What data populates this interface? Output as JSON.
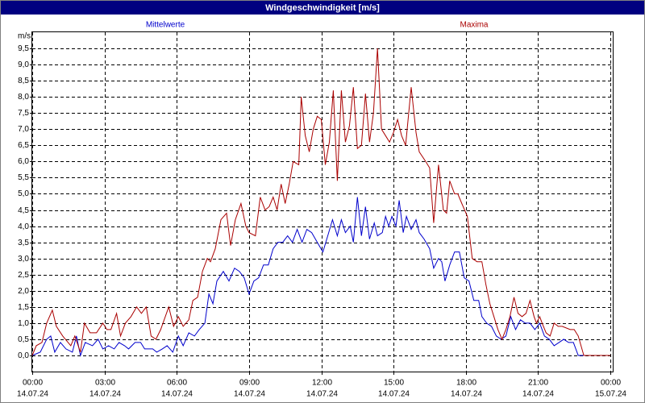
{
  "chart_data": {
    "type": "line",
    "title": "Windgeschwindigkeit [m/s]",
    "y_unit": "m/s",
    "grid": true,
    "xlim": [
      0,
      1440
    ],
    "xticks": [
      {
        "value": 0,
        "label": "00:00"
      },
      {
        "value": 180,
        "label": "03:00"
      },
      {
        "value": 360,
        "label": "06:00"
      },
      {
        "value": 540,
        "label": "09:00"
      },
      {
        "value": 720,
        "label": "12:00"
      },
      {
        "value": 900,
        "label": "15:00"
      },
      {
        "value": 1080,
        "label": "18:00"
      },
      {
        "value": 1260,
        "label": "21:00"
      },
      {
        "value": 1440,
        "label": "00:00"
      }
    ],
    "xtick_dates": [
      "14.07.24",
      "14.07.24",
      "14.07.24",
      "14.07.24",
      "14.07.24",
      "14.07.24",
      "14.07.24",
      "14.07.24",
      "15.07.24"
    ],
    "ylim": [
      -0.5,
      10
    ],
    "yticks": [
      {
        "value": 0,
        "label": "0,0"
      },
      {
        "value": 0.5,
        "label": "0,5"
      },
      {
        "value": 1,
        "label": "1,0"
      },
      {
        "value": 1.5,
        "label": "1,5"
      },
      {
        "value": 2,
        "label": "2,0"
      },
      {
        "value": 2.5,
        "label": "2,5"
      },
      {
        "value": 3,
        "label": "3,0"
      },
      {
        "value": 3.5,
        "label": "3,5"
      },
      {
        "value": 4,
        "label": "4,0"
      },
      {
        "value": 4.5,
        "label": "4,5"
      },
      {
        "value": 5,
        "label": "5,0"
      },
      {
        "value": 5.5,
        "label": "5,5"
      },
      {
        "value": 6,
        "label": "6,0"
      },
      {
        "value": 6.5,
        "label": "6,5"
      },
      {
        "value": 7,
        "label": "7,0"
      },
      {
        "value": 7.5,
        "label": "7,5"
      },
      {
        "value": 8,
        "label": "8,0"
      },
      {
        "value": 8.5,
        "label": "8,5"
      },
      {
        "value": 9,
        "label": "9,0"
      },
      {
        "value": 9.5,
        "label": "9,5"
      }
    ],
    "series": [
      {
        "name": "Mittelwerte",
        "color": "#0000cc",
        "x": [
          0,
          20,
          36,
          46,
          56,
          70,
          84,
          100,
          110,
          120,
          132,
          150,
          164,
          176,
          190,
          204,
          216,
          230,
          240,
          256,
          270,
          280,
          300,
          310,
          324,
          336,
          350,
          364,
          376,
          390,
          404,
          416,
          430,
          440,
          450,
          460,
          476,
          490,
          504,
          516,
          528,
          540,
          552,
          564,
          576,
          588,
          600,
          612,
          624,
          636,
          648,
          660,
          672,
          684,
          696,
          710,
          724,
          736,
          748,
          760,
          770,
          780,
          792,
          800,
          810,
          820,
          830,
          840,
          852,
          860,
          872,
          880,
          888,
          896,
          906,
          914,
          924,
          932,
          944,
          956,
          964,
          976,
          990,
          1000,
          1012,
          1020,
          1028,
          1040,
          1052,
          1064,
          1076,
          1088,
          1100,
          1112,
          1120,
          1132,
          1144,
          1156,
          1168,
          1180,
          1192,
          1204,
          1216,
          1228,
          1240,
          1252,
          1264,
          1276,
          1288,
          1300,
          1312,
          1324,
          1336,
          1348,
          1360,
          1440
        ],
        "values": [
          0,
          0.1,
          0.5,
          0.6,
          0.1,
          0.4,
          0.2,
          0.1,
          0.6,
          0,
          0.4,
          0.3,
          0.5,
          0.2,
          0.3,
          0.2,
          0.4,
          0.3,
          0.2,
          0.4,
          0.4,
          0.2,
          0.2,
          0.1,
          0.2,
          0.3,
          0.1,
          0.6,
          0.3,
          0.7,
          0.6,
          0.8,
          1.0,
          1.9,
          1.6,
          2.3,
          2.6,
          2.3,
          2.7,
          2.6,
          2.4,
          1.9,
          2.3,
          2.4,
          2.8,
          2.8,
          3.3,
          3.5,
          3.5,
          3.7,
          3.5,
          3.9,
          3.5,
          3.9,
          3.8,
          3.5,
          3.2,
          3.7,
          4.2,
          3.7,
          4.2,
          3.8,
          4.0,
          3.5,
          4.9,
          3.7,
          4.6,
          3.6,
          4.1,
          3.7,
          3.8,
          4.3,
          4.0,
          4.3,
          4.0,
          4.8,
          3.8,
          4.3,
          3.9,
          4.2,
          3.8,
          3.6,
          3.3,
          2.7,
          3.0,
          2.9,
          2.3,
          2.8,
          3.2,
          3.2,
          2.4,
          2.3,
          1.7,
          1.7,
          1.2,
          1.0,
          0.9,
          0.6,
          0.5,
          0.6,
          1.2,
          0.8,
          1.1,
          1.0,
          1.0,
          0.8,
          1.0,
          0.6,
          0.5,
          0.3,
          0.4,
          0.5,
          0.4,
          0.4,
          0,
          0
        ]
      },
      {
        "name": "Maxima",
        "color": "#aa0000",
        "x": [
          0,
          10,
          24,
          36,
          50,
          60,
          76,
          96,
          106,
          120,
          130,
          144,
          160,
          176,
          186,
          196,
          210,
          220,
          232,
          246,
          260,
          272,
          284,
          296,
          308,
          320,
          340,
          352,
          364,
          376,
          390,
          400,
          412,
          424,
          436,
          444,
          456,
          470,
          484,
          494,
          506,
          520,
          532,
          540,
          556,
          568,
          580,
          590,
          600,
          610,
          620,
          630,
          640,
          650,
          664,
          670,
          680,
          690,
          700,
          710,
          720,
          730,
          740,
          750,
          760,
          770,
          780,
          790,
          800,
          810,
          820,
          830,
          840,
          850,
          860,
          870,
          880,
          890,
          900,
          910,
          920,
          930,
          944,
          956,
          964,
          980,
          990,
          1000,
          1012,
          1024,
          1032,
          1040,
          1052,
          1060,
          1070,
          1084,
          1096,
          1108,
          1120,
          1130,
          1140,
          1150,
          1160,
          1170,
          1180,
          1190,
          1200,
          1210,
          1220,
          1230,
          1240,
          1250,
          1256,
          1264,
          1270,
          1280,
          1290,
          1300,
          1310,
          1320,
          1340,
          1350,
          1360,
          1374,
          1440
        ],
        "values": [
          0,
          0.3,
          0.4,
          1.0,
          1.4,
          0.9,
          0.6,
          0.3,
          0.6,
          0.1,
          1.0,
          0.7,
          0.7,
          1.0,
          0.8,
          0.8,
          1.3,
          0.6,
          1.0,
          1.2,
          1.5,
          1.3,
          1.5,
          0.6,
          0.5,
          0.8,
          1.5,
          0.9,
          1.2,
          0.9,
          1.1,
          1.7,
          1.8,
          2.6,
          3.0,
          2.9,
          3.3,
          4.2,
          4.4,
          3.4,
          4.2,
          4.7,
          4.0,
          3.8,
          3.7,
          4.9,
          4.5,
          4.6,
          4.9,
          4.5,
          5.3,
          4.7,
          5.3,
          6.0,
          5.9,
          8.0,
          6.8,
          6.3,
          7.0,
          7.4,
          7.3,
          5.9,
          6.6,
          8.2,
          5.4,
          8.2,
          6.6,
          7.1,
          8.3,
          6.4,
          6.5,
          8.1,
          6.6,
          7.5,
          9.5,
          7.0,
          6.8,
          6.6,
          6.9,
          7.3,
          6.8,
          6.5,
          8.3,
          6.9,
          6.3,
          6.0,
          5.8,
          4.1,
          5.9,
          4.5,
          4.4,
          5.4,
          5.0,
          5.0,
          4.7,
          4.3,
          3.0,
          2.9,
          2.9,
          2.2,
          1.6,
          1.2,
          0.8,
          0.5,
          0.8,
          1.2,
          1.8,
          1.3,
          1.2,
          1.3,
          1.7,
          1.2,
          1.0,
          1.2,
          1.0,
          0.7,
          0.6,
          1.0,
          0.9,
          0.9,
          0.8,
          0.8,
          0.6,
          0,
          0
        ]
      }
    ]
  }
}
